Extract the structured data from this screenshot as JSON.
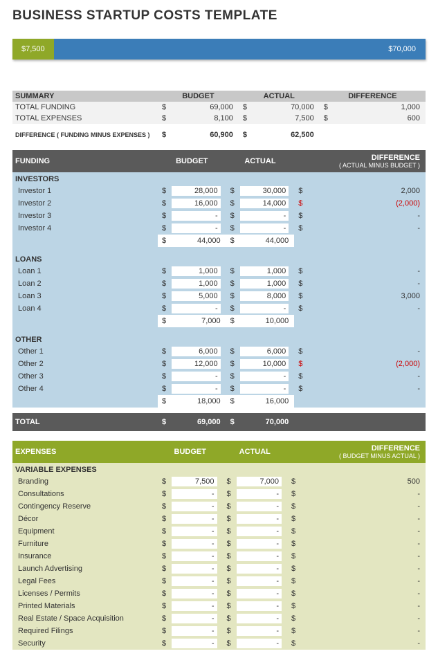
{
  "title": "BUSINESS STARTUP COSTS TEMPLATE",
  "colors": {
    "green": "#8fa828",
    "blue": "#3b7db8",
    "darkgray": "#5a5a5a",
    "lightgray": "#c8c8c8",
    "rowgray": "#f2f2f2",
    "investorsBg": "#bcd5e5",
    "expensesBg": "#e3e6c1",
    "negative": "#c00"
  },
  "bar": {
    "left_label": "$7,500",
    "right_label": "$70,000",
    "left_pct": 10,
    "right_pct": 90
  },
  "summary": {
    "label": "SUMMARY",
    "cols": [
      "BUDGET",
      "ACTUAL",
      "DIFFERENCE"
    ],
    "rows": [
      {
        "label": "TOTAL FUNDING",
        "budget": "69,000",
        "actual": "70,000",
        "diff": "1,000"
      },
      {
        "label": "TOTAL EXPENSES",
        "budget": "8,100",
        "actual": "7,500",
        "diff": "600"
      }
    ],
    "diff": {
      "label": "DIFFERENCE  ( FUNDING MINUS EXPENSES )",
      "budget": "60,900",
      "actual": "62,500",
      "diff": ""
    }
  },
  "funding": {
    "label": "FUNDING",
    "cols": [
      "BUDGET",
      "ACTUAL",
      "DIFFERENCE"
    ],
    "diff_sub": "( ACTUAL MINUS BUDGET )",
    "groups": [
      {
        "label": "INVESTORS",
        "rows": [
          {
            "label": "Investor 1",
            "budget": "28,000",
            "actual": "30,000",
            "diff": "2,000",
            "neg": false
          },
          {
            "label": "Investor 2",
            "budget": "16,000",
            "actual": "14,000",
            "diff": "(2,000)",
            "neg": true
          },
          {
            "label": "Investor 3",
            "budget": "-",
            "actual": "-",
            "diff": "-",
            "neg": false
          },
          {
            "label": "Investor 4",
            "budget": "-",
            "actual": "-",
            "diff": "-",
            "neg": false
          }
        ],
        "subtotal": {
          "budget": "44,000",
          "actual": "44,000"
        }
      },
      {
        "label": "LOANS",
        "rows": [
          {
            "label": "Loan 1",
            "budget": "1,000",
            "actual": "1,000",
            "diff": "-",
            "neg": false
          },
          {
            "label": "Loan 2",
            "budget": "1,000",
            "actual": "1,000",
            "diff": "-",
            "neg": false
          },
          {
            "label": "Loan 3",
            "budget": "5,000",
            "actual": "8,000",
            "diff": "3,000",
            "neg": false
          },
          {
            "label": "Loan 4",
            "budget": "-",
            "actual": "-",
            "diff": "-",
            "neg": false
          }
        ],
        "subtotal": {
          "budget": "7,000",
          "actual": "10,000"
        }
      },
      {
        "label": "OTHER",
        "rows": [
          {
            "label": "Other 1",
            "budget": "6,000",
            "actual": "6,000",
            "diff": "-",
            "neg": false
          },
          {
            "label": "Other 2",
            "budget": "12,000",
            "actual": "10,000",
            "diff": "(2,000)",
            "neg": true
          },
          {
            "label": "Other 3",
            "budget": "-",
            "actual": "-",
            "diff": "-",
            "neg": false
          },
          {
            "label": "Other 4",
            "budget": "-",
            "actual": "-",
            "diff": "-",
            "neg": false
          }
        ],
        "subtotal": {
          "budget": "18,000",
          "actual": "16,000"
        }
      }
    ],
    "total": {
      "label": "TOTAL",
      "budget": "69,000",
      "actual": "70,000"
    }
  },
  "expenses": {
    "label": "EXPENSES",
    "cols": [
      "BUDGET",
      "ACTUAL",
      "DIFFERENCE"
    ],
    "diff_sub": "( BUDGET MINUS ACTUAL )",
    "groups": [
      {
        "label": "VARIABLE EXPENSES",
        "rows": [
          {
            "label": "Branding",
            "budget": "7,500",
            "actual": "7,000",
            "diff": "500"
          },
          {
            "label": "Consultations",
            "budget": "-",
            "actual": "-",
            "diff": "-"
          },
          {
            "label": "Contingency Reserve",
            "budget": "-",
            "actual": "-",
            "diff": "-"
          },
          {
            "label": "Décor",
            "budget": "-",
            "actual": "-",
            "diff": "-"
          },
          {
            "label": "Equipment",
            "budget": "-",
            "actual": "-",
            "diff": "-"
          },
          {
            "label": "Furniture",
            "budget": "-",
            "actual": "-",
            "diff": "-"
          },
          {
            "label": "Insurance",
            "budget": "-",
            "actual": "-",
            "diff": "-"
          },
          {
            "label": "Launch Advertising",
            "budget": "-",
            "actual": "-",
            "diff": "-"
          },
          {
            "label": "Legal Fees",
            "budget": "-",
            "actual": "-",
            "diff": "-"
          },
          {
            "label": "Licenses / Permits",
            "budget": "-",
            "actual": "-",
            "diff": "-"
          },
          {
            "label": "Printed Materials",
            "budget": "-",
            "actual": "-",
            "diff": "-"
          },
          {
            "label": "Real Estate / Space Acquisition",
            "budget": "-",
            "actual": "-",
            "diff": "-"
          },
          {
            "label": "Required Filings",
            "budget": "-",
            "actual": "-",
            "diff": "-"
          },
          {
            "label": "Security",
            "budget": "-",
            "actual": "-",
            "diff": "-"
          }
        ]
      }
    ]
  }
}
